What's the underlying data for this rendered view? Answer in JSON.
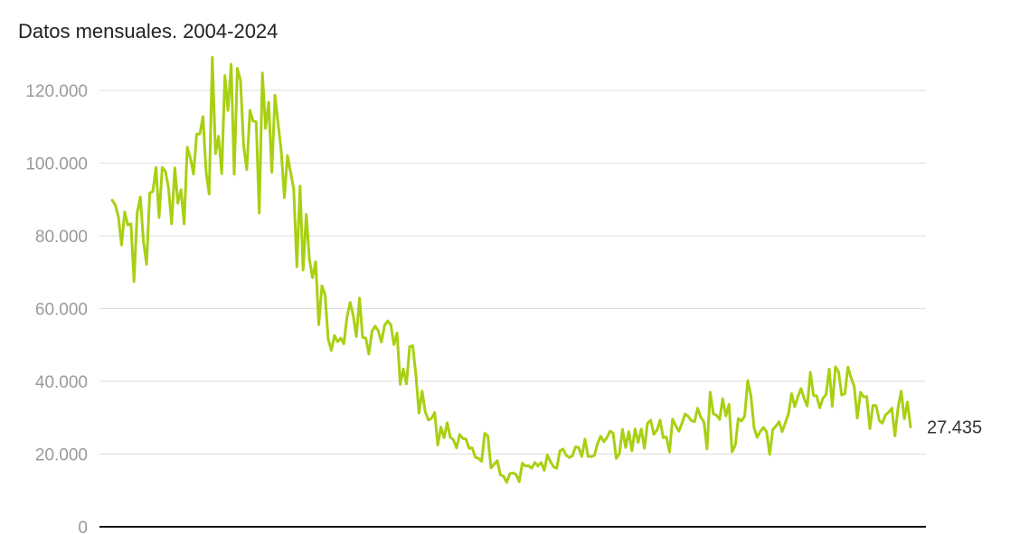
{
  "chart_data": {
    "type": "line",
    "subtitle": "Datos mensuales. 2004-2024",
    "x_start": "2004-01",
    "x_end": "2024-12",
    "ylim": [
      0,
      125000
    ],
    "y_ticks": [
      {
        "value": 0,
        "label": "0"
      },
      {
        "value": 20000,
        "label": "20.000"
      },
      {
        "value": 40000,
        "label": "40.000"
      },
      {
        "value": 60000,
        "label": "60.000"
      },
      {
        "value": 80000,
        "label": "80.000"
      },
      {
        "value": 100000,
        "label": "100.000"
      },
      {
        "value": 120000,
        "label": "120.000"
      }
    ],
    "grid": true,
    "end_label": "27.435",
    "colors": {
      "line": "#a8d012",
      "grid": "#dddddd",
      "axis": "#111111"
    },
    "series": [
      {
        "values": [
          89800,
          88500,
          85300,
          77500,
          86600,
          83000,
          83300,
          67500,
          86300,
          90700,
          78500,
          72200,
          91800,
          92200,
          98800,
          85100,
          98800,
          97800,
          93300,
          83300,
          98700,
          89000,
          92700,
          83300,
          104400,
          101400,
          97000,
          108000,
          108000,
          112800,
          97700,
          91500,
          129100,
          102600,
          107400,
          97100,
          124100,
          114500,
          127200,
          97000,
          126100,
          122700,
          104800,
          98200,
          114500,
          111600,
          111400,
          86300,
          124800,
          109600,
          116800,
          97500,
          118700,
          111000,
          103400,
          90500,
          102100,
          97500,
          92900,
          71500,
          93700,
          70600,
          85900,
          73500,
          68500,
          72900,
          55600,
          66300,
          63800,
          51700,
          48500,
          52600,
          50900,
          51900,
          50300,
          57600,
          61700,
          58100,
          52300,
          62900,
          52100,
          51900,
          47500,
          53800,
          55200,
          53900,
          50800,
          55400,
          56600,
          55600,
          50100,
          53300,
          39200,
          43400,
          39300,
          49500,
          49800,
          41900,
          31300,
          37300,
          31600,
          29400,
          29800,
          31400,
          22500,
          27400,
          24500,
          28600,
          24600,
          23900,
          21700,
          25400,
          24300,
          24100,
          21600,
          21700,
          19100,
          18800,
          18000,
          25700,
          24900,
          16200,
          17200,
          18200,
          14300,
          13900,
          12200,
          14600,
          14800,
          14400,
          12400,
          17500,
          16700,
          16800,
          16100,
          17700,
          16700,
          17700,
          15500,
          19700,
          17900,
          16500,
          16100,
          20900,
          21400,
          19700,
          19000,
          19500,
          22000,
          21800,
          19300,
          24100,
          19300,
          19300,
          19600,
          22800,
          24900,
          23400,
          24500,
          26300,
          25800,
          18800,
          20100,
          26800,
          21800,
          26200,
          20900,
          26900,
          23200,
          26900,
          21600,
          28500,
          29300,
          25400,
          26600,
          29300,
          24500,
          24700,
          20600,
          29600,
          27800,
          26300,
          28500,
          31000,
          30400,
          29200,
          28900,
          32600,
          30100,
          28800,
          21400,
          37000,
          31100,
          30700,
          29500,
          35200,
          30500,
          33700,
          20600,
          22400,
          29800,
          29100,
          30400,
          40200,
          36100,
          27200,
          24600,
          26200,
          27300,
          26100,
          19900,
          26700,
          27700,
          28900,
          26200,
          28600,
          31100,
          36600,
          33000,
          35700,
          38000,
          35300,
          33200,
          42500,
          36100,
          36000,
          32700,
          35300,
          36400,
          43400,
          33100,
          44000,
          42600,
          36200,
          36600,
          43900,
          41000,
          38500,
          29900,
          37000,
          35700,
          35800,
          27000,
          33400,
          33300,
          29200,
          28500,
          30800,
          31500,
          32600,
          25000,
          32600,
          37300,
          29700,
          34300,
          27435
        ]
      }
    ]
  }
}
